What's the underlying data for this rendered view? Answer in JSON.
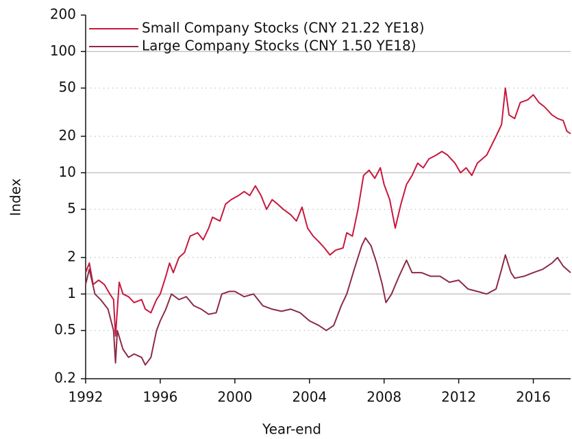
{
  "chart_data": {
    "type": "line",
    "log_y": true,
    "grid": true,
    "legend": "top-left",
    "x_label": "Year-end",
    "y_label": "Index",
    "xlim": [
      1992,
      2018
    ],
    "xticks": [
      1992,
      1996,
      2000,
      2004,
      2008,
      2012,
      2016
    ],
    "ylim": [
      0.2,
      200
    ],
    "yticks": [
      200,
      100,
      50,
      20,
      10,
      5,
      2,
      1,
      0.5,
      0.2
    ],
    "series": [
      {
        "name": "Small Company Stocks (CNY 21.22 YE18)",
        "color": "#c8173d",
        "x": [
          1992.0,
          1992.2,
          1992.4,
          1992.7,
          1993.0,
          1993.3,
          1993.5,
          1993.6,
          1993.8,
          1994.0,
          1994.3,
          1994.6,
          1995.0,
          1995.2,
          1995.5,
          1995.8,
          1996.0,
          1996.3,
          1996.5,
          1996.7,
          1997.0,
          1997.3,
          1997.6,
          1998.0,
          1998.3,
          1998.6,
          1998.8,
          1999.2,
          1999.5,
          1999.8,
          2000.2,
          2000.5,
          2000.8,
          2001.1,
          2001.4,
          2001.7,
          2002.0,
          2002.3,
          2002.6,
          2003.0,
          2003.3,
          2003.6,
          2003.9,
          2004.2,
          2004.5,
          2004.8,
          2005.1,
          2005.4,
          2005.8,
          2006.0,
          2006.3,
          2006.6,
          2006.9,
          2007.2,
          2007.5,
          2007.8,
          2008.0,
          2008.3,
          2008.6,
          2008.9,
          2009.2,
          2009.5,
          2009.8,
          2010.1,
          2010.4,
          2010.8,
          2011.1,
          2011.4,
          2011.8,
          2012.1,
          2012.4,
          2012.7,
          2013.0,
          2013.5,
          2014.0,
          2014.3,
          2014.5,
          2014.7,
          2015.0,
          2015.3,
          2015.7,
          2016.0,
          2016.3,
          2016.6,
          2017.0,
          2017.3,
          2017.6,
          2017.8,
          2018.0
        ],
        "values": [
          1.5,
          1.8,
          1.2,
          1.3,
          1.2,
          1.0,
          0.9,
          0.45,
          1.25,
          1.0,
          0.95,
          0.85,
          0.9,
          0.75,
          0.7,
          0.9,
          1.0,
          1.4,
          1.8,
          1.5,
          2.0,
          2.2,
          3.0,
          3.2,
          2.8,
          3.5,
          4.3,
          4.0,
          5.5,
          6.0,
          6.5,
          7.0,
          6.5,
          7.8,
          6.5,
          5.0,
          6.0,
          5.5,
          5.0,
          4.5,
          4.0,
          5.2,
          3.5,
          3.0,
          2.7,
          2.4,
          2.1,
          2.3,
          2.4,
          3.2,
          3.0,
          5.0,
          9.5,
          10.5,
          9.0,
          11,
          8,
          6,
          3.5,
          5.5,
          8,
          9.5,
          12,
          11,
          13,
          14,
          15,
          14,
          12,
          10,
          11,
          9.5,
          12,
          14,
          20,
          25,
          50,
          30,
          28,
          38,
          40,
          44,
          38,
          35,
          30,
          28,
          27,
          22,
          21
        ]
      },
      {
        "name": "Large Company Stocks (CNY 1.50 YE18)",
        "color": "#8b2a45",
        "x": [
          1992.0,
          1992.2,
          1992.5,
          1992.8,
          1993.2,
          1993.5,
          1993.6,
          1993.7,
          1994.0,
          1994.3,
          1994.6,
          1995.0,
          1995.2,
          1995.5,
          1995.8,
          1996.0,
          1996.3,
          1996.6,
          1997.0,
          1997.4,
          1997.8,
          1998.2,
          1998.6,
          1999.0,
          1999.3,
          1999.7,
          2000.0,
          2000.5,
          2001.0,
          2001.5,
          2002.0,
          2002.5,
          2003.0,
          2003.5,
          2004.0,
          2004.5,
          2004.9,
          2005.3,
          2005.7,
          2006.0,
          2006.4,
          2006.8,
          2007.0,
          2007.3,
          2007.6,
          2007.9,
          2008.1,
          2008.4,
          2008.8,
          2009.2,
          2009.5,
          2010.0,
          2010.5,
          2011.0,
          2011.5,
          2012.0,
          2012.5,
          2013.0,
          2013.5,
          2014.0,
          2014.3,
          2014.5,
          2014.8,
          2015.0,
          2015.5,
          2016.0,
          2016.5,
          2017.0,
          2017.3,
          2017.6,
          2018.0
        ],
        "values": [
          1.2,
          1.6,
          1.0,
          0.9,
          0.75,
          0.5,
          0.27,
          0.5,
          0.35,
          0.3,
          0.32,
          0.3,
          0.26,
          0.3,
          0.5,
          0.6,
          0.75,
          1.0,
          0.9,
          0.95,
          0.8,
          0.75,
          0.68,
          0.7,
          1.0,
          1.05,
          1.05,
          0.95,
          1.0,
          0.8,
          0.75,
          0.72,
          0.75,
          0.7,
          0.6,
          0.55,
          0.5,
          0.55,
          0.8,
          1.0,
          1.6,
          2.5,
          2.9,
          2.5,
          1.8,
          1.2,
          0.85,
          1.0,
          1.4,
          1.9,
          1.5,
          1.5,
          1.4,
          1.4,
          1.25,
          1.3,
          1.1,
          1.05,
          1.0,
          1.1,
          1.6,
          2.1,
          1.5,
          1.35,
          1.4,
          1.5,
          1.6,
          1.8,
          2.0,
          1.7,
          1.5
        ]
      }
    ]
  }
}
